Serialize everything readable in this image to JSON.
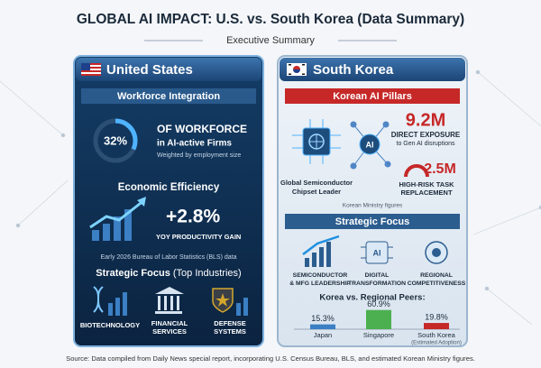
{
  "header": {
    "title": "GLOBAL AI IMPACT: U.S. vs. South Korea (Data Summary)",
    "subtitle": "Executive Summary"
  },
  "us": {
    "name": "United States",
    "workforce": {
      "heading": "Workforce Integration",
      "share": 32,
      "share_label": "32%",
      "line1": "OF WORKFORCE",
      "line2": "in AI-active Firms",
      "note": "Weighted by employment size"
    },
    "efficiency": {
      "heading": "Economic Efficiency",
      "gain": "+2.8%",
      "caption": "YOY PRODUCTIVITY GAIN",
      "source": "Early 2026 Bureau of Labor Statistics (BLS) data"
    },
    "focus": {
      "heading": "Strategic Focus",
      "subheading": "(Top Industries)",
      "industries": [
        [
          "BIOTECHNOLOGY"
        ],
        [
          "FINANCIAL",
          "SERVICES"
        ],
        [
          "DEFENSE",
          "SYSTEMS"
        ]
      ]
    }
  },
  "korea": {
    "name": "South Korea",
    "pillars": {
      "heading": "Korean AI Pillars",
      "chip": [
        "Global Semiconductor",
        "Chipset Leader"
      ],
      "exposure": "9.2M",
      "exposure_lines": [
        "DIRECT EXPOSURE",
        "to Gen AI disruptions"
      ],
      "risk": "2.5M",
      "risk_lines": [
        "HIGH-RISK TASK",
        "REPLACEMENT"
      ],
      "source": "Korean Ministry figures"
    },
    "focus": {
      "heading": "Strategic Focus",
      "items": [
        [
          "SEMICONDUCTOR",
          "& MFG LEADERSHIP"
        ],
        [
          "DIGITAL",
          "TRANSFORMATION"
        ],
        [
          "REGIONAL",
          "COMPETITIVENESS"
        ]
      ]
    },
    "peers": {
      "heading": "Korea vs. Regional Peers:",
      "items": [
        {
          "name": "Japan",
          "value": 15.3,
          "label": "15.3%"
        },
        {
          "name": "Singapore",
          "value": 60.9,
          "label": "60.9%"
        },
        {
          "name": "South Korea",
          "value": 19.8,
          "label": "19.8%",
          "note": "(Estimated Adoption)"
        }
      ]
    }
  },
  "source": "Source: Data compiled from Daily News special report, incorporating U.S. Census Bureau, BLS, and estimated Korean Ministry figures."
}
